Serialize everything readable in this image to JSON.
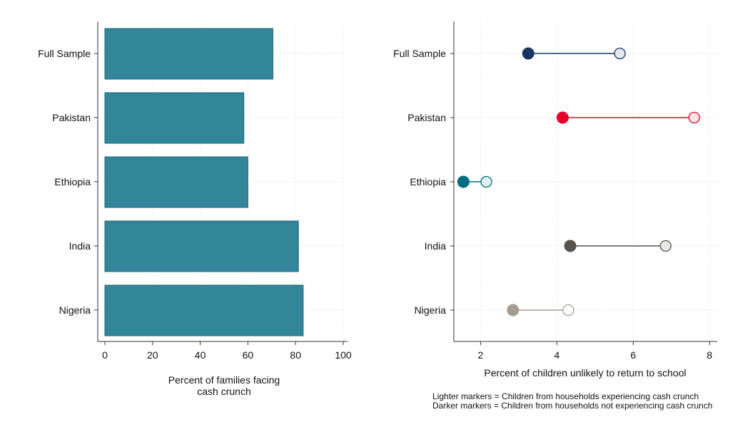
{
  "chart_data": [
    {
      "type": "bar",
      "orientation": "horizontal",
      "categories": [
        "Full Sample",
        "Pakistan",
        "Ethiopia",
        "India",
        "Nigeria"
      ],
      "values": [
        70.5,
        58.3,
        60.0,
        81.2,
        83.2
      ],
      "xlabel": [
        "Percent of families facing",
        "cash crunch"
      ],
      "xlim": [
        0,
        100
      ],
      "xticks": [
        0,
        20,
        40,
        60,
        80,
        100
      ],
      "grid": true,
      "colors": {
        "bar": "#338599",
        "bar_edge": "#1a6a7a"
      }
    },
    {
      "type": "scatter",
      "subtype": "dumbbell",
      "categories": [
        "Full Sample",
        "Pakistan",
        "Ethiopia",
        "India",
        "Nigeria"
      ],
      "series": [
        {
          "values": [
            3.25,
            4.15,
            1.55,
            4.35,
            2.85
          ],
          "marker": "filled"
        },
        {
          "values": [
            5.65,
            7.6,
            2.15,
            6.85,
            4.3
          ],
          "marker": "light"
        }
      ],
      "colors": [
        {
          "dark": "#1a3560",
          "light": "#e3e8ef",
          "line": "#1a3560"
        },
        {
          "dark": "#e4002b",
          "light": "#fde4e6",
          "line": "#e4002b"
        },
        {
          "dark": "#006b80",
          "light": "#e0f0f2",
          "line": "#006b80"
        },
        {
          "dark": "#5a524c",
          "light": "#e8e8e8",
          "line": "#5a524c"
        },
        {
          "dark": "#a59c94",
          "light": "#ffffff",
          "line": "#a59c94"
        }
      ],
      "xlabel": "Percent of children unlikely to return to school",
      "xlim": [
        1.3,
        8.2
      ],
      "xticks": [
        2,
        4,
        6,
        8
      ],
      "grid": true
    }
  ],
  "notes": [
    "Lighter markers = Children from households experiencing cash crunch",
    "Darker markers = Children from households not experiencing cash crunch"
  ]
}
